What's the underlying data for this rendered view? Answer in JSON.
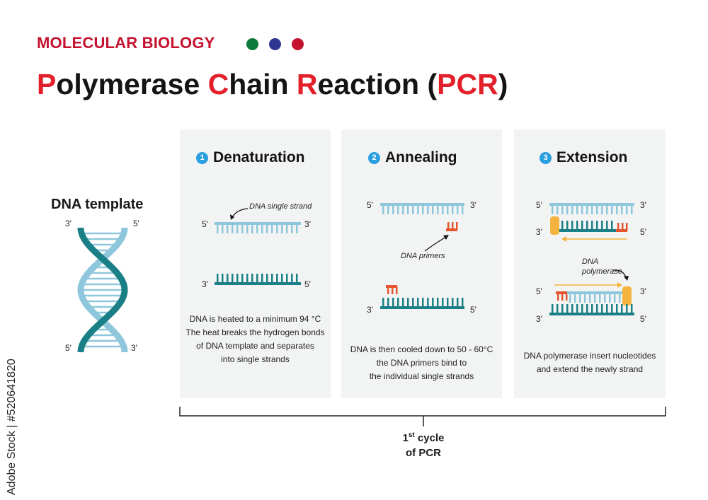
{
  "header": {
    "kicker": "MOLECULAR BIOLOGY",
    "dot_colors": [
      "#0d7a3a",
      "#2f3592",
      "#c4122f"
    ],
    "title": [
      {
        "text": "P",
        "highlight": true
      },
      {
        "text": "olymerase ",
        "highlight": false
      },
      {
        "text": "C",
        "highlight": true
      },
      {
        "text": "hain ",
        "highlight": false
      },
      {
        "text": "R",
        "highlight": true
      },
      {
        "text": "eaction (",
        "highlight": false
      },
      {
        "text": "PCR",
        "highlight": true
      },
      {
        "text": ")",
        "highlight": false
      }
    ]
  },
  "template": {
    "title": "DNA template",
    "top_left": "3'",
    "top_right": "5'",
    "bottom_left": "5'",
    "bottom_right": "3'"
  },
  "steps": [
    {
      "number": "1",
      "title": "Denaturation",
      "annotation": "DNA single strand",
      "ends": {
        "s1_left": "5'",
        "s1_right": "3'",
        "s2_left": "3'",
        "s2_right": "5'"
      },
      "caption_lines": [
        "DNA is heated to a minimum 94 °C",
        "The heat breaks the hydrogen bonds",
        "of DNA template and separates",
        "into single strands"
      ]
    },
    {
      "number": "2",
      "title": "Annealing",
      "annotation": "DNA primers",
      "ends": {
        "s1_left": "5'",
        "s1_right": "3'",
        "s2_left": "3'",
        "s2_right": "5'"
      },
      "caption_lines": [
        "DNA is then cooled down to 50 - 60°C",
        "the DNA primers bind to",
        "the individual single strands"
      ]
    },
    {
      "number": "3",
      "title": "Extension",
      "annotation_lines": [
        "DNA",
        "polymerase"
      ],
      "ends": {
        "a_tl": "5'",
        "a_tr": "3'",
        "a_bl": "3'",
        "a_br": "5'",
        "b_tl": "5'",
        "b_tr": "3'",
        "b_bl": "3'",
        "b_br": "5'"
      },
      "caption_lines": [
        "DNA polymerase insert nucleotides",
        "and extend the newly strand"
      ]
    }
  ],
  "cycle": {
    "number": "1",
    "suffix": "st",
    "line1": " cycle",
    "line2": "of PCR"
  },
  "colors": {
    "teal": "#1a7f86",
    "light_blue": "#8ec7dc",
    "primer": "#e5532f",
    "polymerase": "#f4b33e",
    "panel": "#f2f4f3"
  },
  "watermark": "Adobe Stock | #520641820"
}
